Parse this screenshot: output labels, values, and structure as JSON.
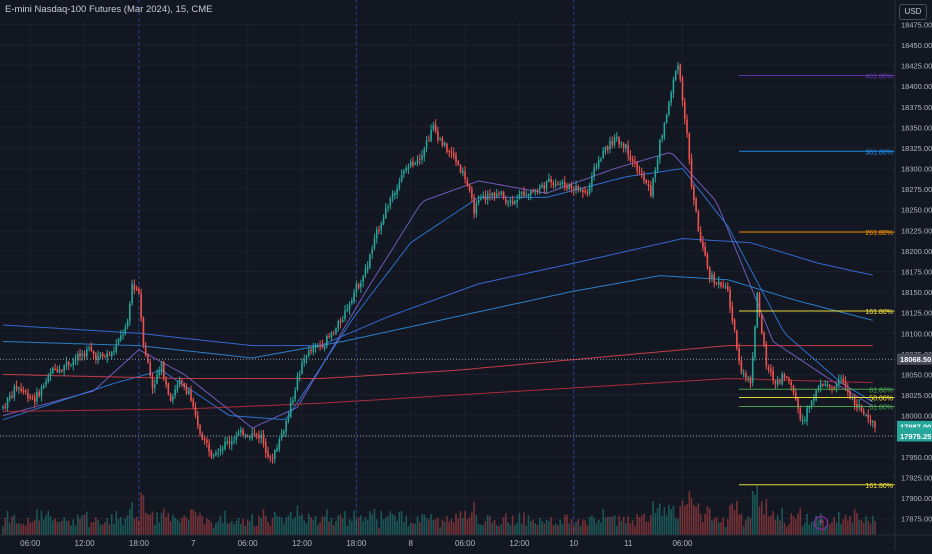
{
  "header": {
    "title": "E-mini Nasdaq-100 Futures (Mar 2024), 15, CME",
    "currency": "USD"
  },
  "colors": {
    "background": "#131722",
    "up": "#26a69a",
    "down": "#ef5350",
    "axis_text": "#b2b5be",
    "ma_blue": "#2962ff",
    "ma_red": "#f23645",
    "fib_purple": "#673ab7",
    "fib_blue": "#2196f3",
    "fib_orange": "#ff9800",
    "fib_yellow": "#ffeb3b",
    "fib_green": "#4caf50"
  },
  "icons": {
    "flash": "lightning-icon"
  },
  "chart_data": {
    "type": "candlestick",
    "y_ticks": [
      17875,
      17900,
      17925,
      17950,
      17975,
      18000,
      18025,
      18050,
      18075,
      18100,
      18125,
      18150,
      18175,
      18200,
      18225,
      18250,
      18275,
      18300,
      18325,
      18350,
      18375,
      18400,
      18425,
      18450,
      18475
    ],
    "ylim": [
      17855,
      18478
    ],
    "x_labels": [
      "06:00",
      "12:00",
      "18:00",
      "7",
      "06:00",
      "12:00",
      "18:00",
      "8",
      "06:00",
      "12:00",
      "10",
      "11",
      "06:00"
    ],
    "bars_per_label": 24,
    "session_separators": [
      "18:00",
      "18:00",
      "18:00",
      "10"
    ],
    "price_labels": [
      {
        "text": "18068.50",
        "value": 18068.5,
        "color": "#ffffff",
        "bg": "#4a4e59"
      },
      {
        "text": "17987.00",
        "value": 17987.0,
        "color": "#ffffff",
        "bg": "#26a69a"
      },
      {
        "text": "03:31",
        "value": 17979.0,
        "color": "#ffffff",
        "bg": "#26a69a"
      },
      {
        "text": "17975.25",
        "value": 17975.25,
        "color": "#ffffff",
        "bg": "#26a69a"
      }
    ],
    "dotted_lines": [
      18068.5,
      17975.25
    ],
    "fib_levels": [
      {
        "label": "461.80%",
        "value": 18413,
        "color": "#673ab7"
      },
      {
        "label": "361.80%",
        "value": 18321,
        "color": "#2196f3"
      },
      {
        "label": "261.80%",
        "value": 18223,
        "color": "#ff9800"
      },
      {
        "label": "161.80%",
        "value": 18127,
        "color": "#ffeb3b"
      },
      {
        "label": "61.80%",
        "value": 18032,
        "color": "#4caf50"
      },
      {
        "label": "50.00%",
        "value": 18022,
        "color": "#ffeb3b"
      },
      {
        "label": "61.80%",
        "value": 18011,
        "color": "#4caf50"
      },
      {
        "label": "161.80%",
        "value": 17916,
        "color": "#ffeb3b"
      }
    ],
    "price_keypoints": [
      [
        0,
        18010
      ],
      [
        6,
        18035
      ],
      [
        14,
        18020
      ],
      [
        22,
        18055
      ],
      [
        30,
        18065
      ],
      [
        38,
        18080
      ],
      [
        42,
        18070
      ],
      [
        48,
        18075
      ],
      [
        55,
        18110
      ],
      [
        57,
        18160
      ],
      [
        60,
        18150
      ],
      [
        62,
        18090
      ],
      [
        66,
        18035
      ],
      [
        70,
        18060
      ],
      [
        74,
        18020
      ],
      [
        78,
        18040
      ],
      [
        82,
        18030
      ],
      [
        86,
        17985
      ],
      [
        92,
        17955
      ],
      [
        98,
        17965
      ],
      [
        106,
        17980
      ],
      [
        114,
        17975
      ],
      [
        118,
        17945
      ],
      [
        122,
        17970
      ],
      [
        126,
        18000
      ],
      [
        130,
        18045
      ],
      [
        134,
        18075
      ],
      [
        140,
        18085
      ],
      [
        146,
        18100
      ],
      [
        150,
        18120
      ],
      [
        155,
        18150
      ],
      [
        160,
        18175
      ],
      [
        166,
        18230
      ],
      [
        172,
        18270
      ],
      [
        178,
        18300
      ],
      [
        184,
        18315
      ],
      [
        190,
        18350
      ],
      [
        194,
        18330
      ],
      [
        200,
        18310
      ],
      [
        204,
        18290
      ],
      [
        208,
        18250
      ],
      [
        212,
        18265
      ],
      [
        218,
        18270
      ],
      [
        224,
        18260
      ],
      [
        230,
        18270
      ],
      [
        236,
        18275
      ],
      [
        242,
        18285
      ],
      [
        248,
        18280
      ],
      [
        254,
        18275
      ],
      [
        258,
        18270
      ],
      [
        262,
        18305
      ],
      [
        266,
        18325
      ],
      [
        270,
        18335
      ],
      [
        274,
        18330
      ],
      [
        278,
        18310
      ],
      [
        282,
        18290
      ],
      [
        286,
        18270
      ],
      [
        290,
        18330
      ],
      [
        294,
        18380
      ],
      [
        298,
        18430
      ],
      [
        302,
        18340
      ],
      [
        304,
        18280
      ],
      [
        308,
        18210
      ],
      [
        312,
        18170
      ],
      [
        316,
        18160
      ],
      [
        320,
        18150
      ],
      [
        323,
        18100
      ],
      [
        326,
        18055
      ],
      [
        330,
        18040
      ],
      [
        333,
        18145
      ],
      [
        337,
        18060
      ],
      [
        341,
        18040
      ],
      [
        345,
        18050
      ],
      [
        349,
        18030
      ],
      [
        353,
        17990
      ],
      [
        357,
        18020
      ],
      [
        362,
        18040
      ],
      [
        366,
        18030
      ],
      [
        370,
        18045
      ],
      [
        374,
        18025
      ],
      [
        378,
        18010
      ],
      [
        382,
        17992
      ],
      [
        385,
        17987
      ]
    ],
    "moving_averages": [
      {
        "name": "",
        "color": "#7b61c9",
        "keypoints": [
          [
            0,
            18000
          ],
          [
            40,
            18030
          ],
          [
            60,
            18080
          ],
          [
            80,
            18050
          ],
          [
            110,
            17985
          ],
          [
            130,
            18010
          ],
          [
            160,
            18150
          ],
          [
            185,
            18260
          ],
          [
            210,
            18285
          ],
          [
            240,
            18270
          ],
          [
            270,
            18300
          ],
          [
            295,
            18320
          ],
          [
            315,
            18260
          ],
          [
            340,
            18090
          ],
          [
            370,
            18035
          ],
          [
            385,
            18010
          ]
        ]
      },
      {
        "name": "",
        "color": "#2d7be0",
        "keypoints": [
          [
            0,
            17995
          ],
          [
            50,
            18040
          ],
          [
            70,
            18055
          ],
          [
            100,
            18000
          ],
          [
            125,
            17995
          ],
          [
            155,
            18120
          ],
          [
            180,
            18210
          ],
          [
            210,
            18265
          ],
          [
            240,
            18265
          ],
          [
            275,
            18290
          ],
          [
            300,
            18300
          ],
          [
            320,
            18230
          ],
          [
            345,
            18100
          ],
          [
            370,
            18040
          ],
          [
            385,
            18015
          ]
        ]
      },
      {
        "name": "",
        "color": "#3a6fe0",
        "keypoints": [
          [
            0,
            18110
          ],
          [
            60,
            18100
          ],
          [
            110,
            18085
          ],
          [
            140,
            18085
          ],
          [
            170,
            18120
          ],
          [
            210,
            18160
          ],
          [
            260,
            18190
          ],
          [
            300,
            18215
          ],
          [
            330,
            18210
          ],
          [
            360,
            18185
          ],
          [
            385,
            18170
          ]
        ]
      },
      {
        "name": "",
        "color": "#2f8ad8",
        "keypoints": [
          [
            0,
            18090
          ],
          [
            60,
            18085
          ],
          [
            110,
            18070
          ],
          [
            150,
            18090
          ],
          [
            200,
            18120
          ],
          [
            250,
            18150
          ],
          [
            290,
            18170
          ],
          [
            320,
            18165
          ],
          [
            350,
            18140
          ],
          [
            385,
            18115
          ]
        ]
      },
      {
        "name": "",
        "color": "#d8404b",
        "keypoints": [
          [
            0,
            18050
          ],
          [
            80,
            18045
          ],
          [
            140,
            18045
          ],
          [
            200,
            18055
          ],
          [
            260,
            18070
          ],
          [
            320,
            18085
          ],
          [
            385,
            18085
          ]
        ]
      },
      {
        "name": "",
        "color": "#b8303c",
        "keypoints": [
          [
            0,
            18005
          ],
          [
            80,
            18008
          ],
          [
            140,
            18015
          ],
          [
            200,
            18025
          ],
          [
            260,
            18035
          ],
          [
            320,
            18045
          ],
          [
            385,
            18040
          ]
        ]
      }
    ]
  }
}
